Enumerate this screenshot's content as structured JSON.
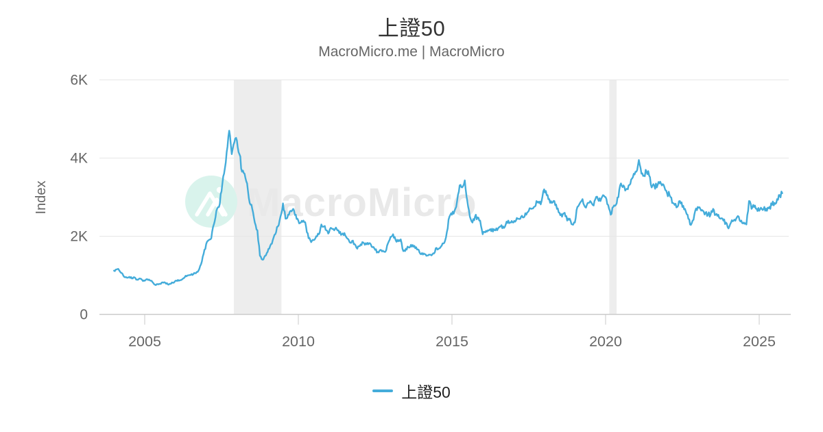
{
  "header": {
    "title": "上證50",
    "subtitle": "MacroMicro.me | MacroMicro"
  },
  "legend": {
    "items": [
      {
        "label": "上證50"
      }
    ]
  },
  "colors": {
    "series": "#44acda",
    "band": "#ededed",
    "grid": "#e6e6e6",
    "axis": "#c9c9c9",
    "tick_label": "#666666",
    "title": "#333333",
    "subtitle": "#666666",
    "watermark_text": "#e9e9e9",
    "watermark_circle": "#d9f3ec",
    "background": "#ffffff"
  },
  "chart_data": {
    "type": "line",
    "title": "上證50",
    "subtitle": "MacroMicro.me | MacroMicro",
    "grid": "horizontal",
    "legend_position": "bottom",
    "watermark": {
      "text": "MacroMicro",
      "logo": "macromicro-mountain-logo"
    },
    "xaxis": {
      "ticks": [
        2005,
        2010,
        2015,
        2020,
        2025
      ],
      "range": [
        2003.85,
        2025.95
      ]
    },
    "yaxis": {
      "label": "Index",
      "range": [
        0,
        6000
      ],
      "ticks": [
        {
          "label": "0",
          "value": 0
        },
        {
          "label": "2K",
          "value": 2000
        },
        {
          "label": "4K",
          "value": 4000
        },
        {
          "label": "6K",
          "value": 6000
        }
      ]
    },
    "recession_bands": [
      {
        "start": 2007.9,
        "end": 2009.45
      },
      {
        "start": 2020.12,
        "end": 2020.36
      }
    ],
    "series": [
      {
        "name": "上證50",
        "start_year": 2004,
        "start_month": 1,
        "interval": "monthly",
        "values": [
          1120,
          1150,
          1130,
          1060,
          960,
          940,
          960,
          920,
          950,
          890,
          920,
          880,
          860,
          900,
          870,
          830,
          760,
          775,
          780,
          820,
          810,
          770,
          780,
          810,
          860,
          880,
          875,
          920,
          990,
          1000,
          1010,
          1030,
          1055,
          1120,
          1280,
          1550,
          1800,
          1900,
          1950,
          2300,
          2650,
          2750,
          3150,
          3600,
          4150,
          4700,
          4100,
          4400,
          4450,
          4100,
          3650,
          3600,
          3350,
          2850,
          2700,
          2350,
          2150,
          1500,
          1400,
          1500,
          1600,
          1750,
          1900,
          2050,
          2250,
          2500,
          2840,
          2450,
          2550,
          2650,
          2700,
          2550,
          2400,
          2350,
          2400,
          2250,
          1950,
          1850,
          1900,
          2000,
          2050,
          2300,
          2250,
          2150,
          2100,
          2200,
          2150,
          2180,
          2080,
          2050,
          2080,
          1950,
          1850,
          1880,
          1800,
          1680,
          1750,
          1850,
          1780,
          1830,
          1820,
          1720,
          1650,
          1600,
          1650,
          1630,
          1600,
          1820,
          1980,
          2050,
          1900,
          1870,
          1920,
          1620,
          1680,
          1720,
          1780,
          1730,
          1720,
          1650,
          1540,
          1560,
          1500,
          1530,
          1510,
          1560,
          1700,
          1690,
          1760,
          1830,
          2100,
          2500,
          2550,
          2650,
          2900,
          3300,
          3250,
          3430,
          2900,
          2500,
          2350,
          2500,
          2480,
          2400,
          2050,
          2100,
          2150,
          2180,
          2120,
          2150,
          2200,
          2250,
          2250,
          2300,
          2400,
          2350,
          2350,
          2400,
          2450,
          2500,
          2480,
          2550,
          2650,
          2700,
          2750,
          2900,
          2850,
          2900,
          3200,
          3050,
          2950,
          2850,
          2900,
          2700,
          2600,
          2500,
          2600,
          2400,
          2450,
          2300,
          2350,
          2750,
          2850,
          2950,
          2750,
          2850,
          2900,
          2800,
          2950,
          2950,
          2900,
          3050,
          3000,
          2800,
          2550,
          2750,
          2800,
          3000,
          3350,
          3300,
          3200,
          3300,
          3450,
          3600,
          3650,
          3950,
          3600,
          3550,
          3650,
          3550,
          3250,
          3300,
          3250,
          3350,
          3300,
          3250,
          3100,
          3050,
          2850,
          2800,
          2750,
          2900,
          2750,
          2700,
          2550,
          2300,
          2400,
          2650,
          2750,
          2700,
          2650,
          2600,
          2550,
          2550,
          2700,
          2550,
          2550,
          2450,
          2400,
          2350,
          2200,
          2350,
          2400,
          2450,
          2500,
          2400,
          2350,
          2300,
          2900,
          2700,
          2750,
          2700,
          2650,
          2700,
          2750,
          2650,
          2750,
          2800,
          2850,
          2950,
          3050,
          3100
        ]
      }
    ]
  }
}
